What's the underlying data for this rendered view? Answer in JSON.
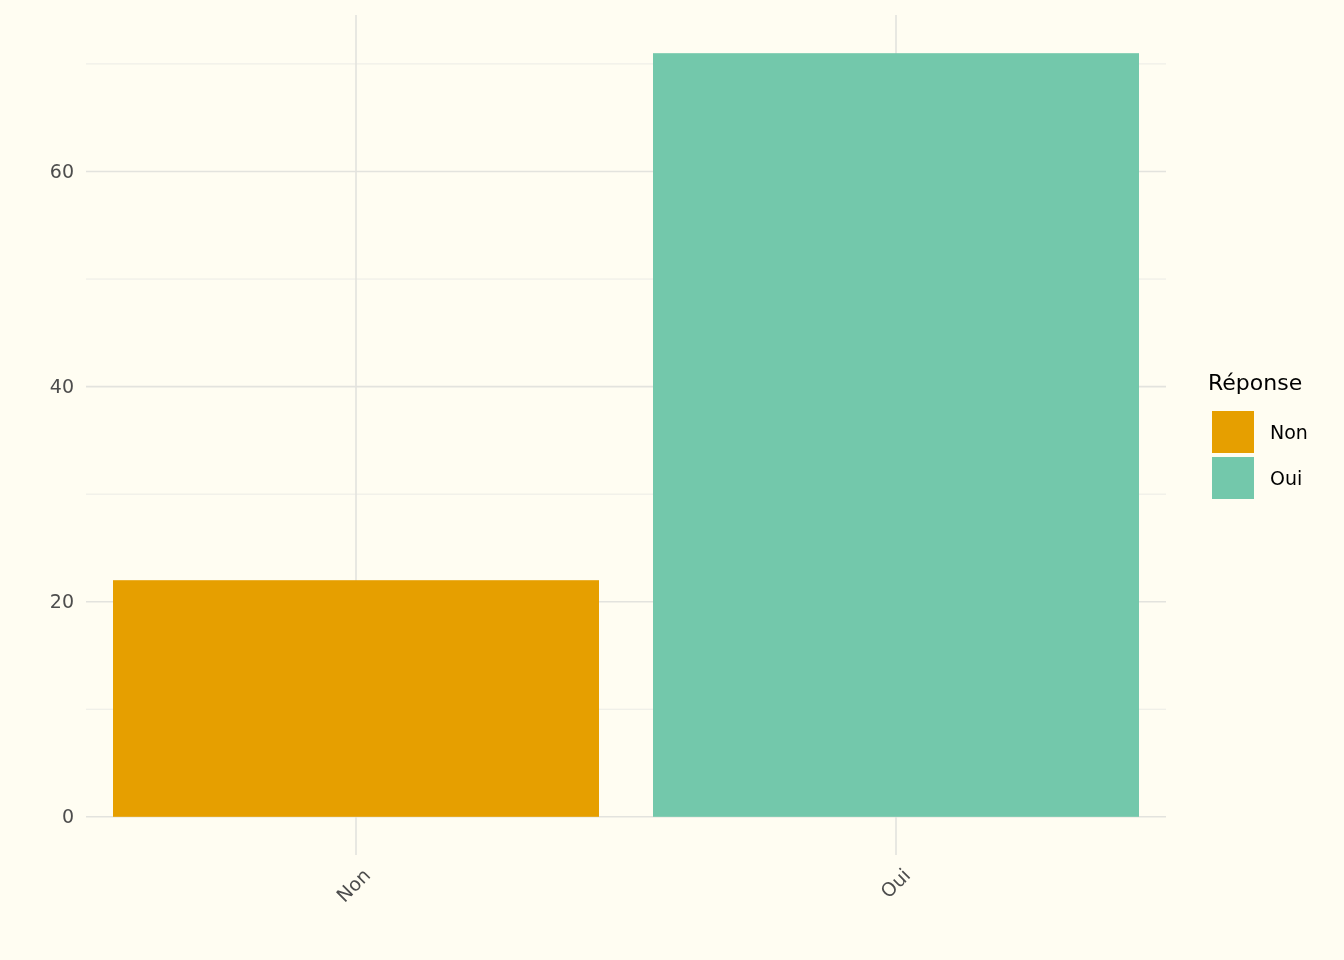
{
  "chart_data": {
    "type": "bar",
    "categories": [
      "Non",
      "Oui"
    ],
    "stacked": true,
    "series": [
      {
        "name": "Non",
        "color": "#e69f00",
        "values": [
          22,
          null
        ]
      },
      {
        "name": "Oui",
        "color": "#73c8ab",
        "values": [
          null,
          71
        ]
      }
    ],
    "ylim": [
      -3.55,
      74.55
    ],
    "yticks": [
      0,
      20,
      40,
      60
    ],
    "grid": true,
    "legend": "right",
    "legend_title": "Réponse"
  }
}
